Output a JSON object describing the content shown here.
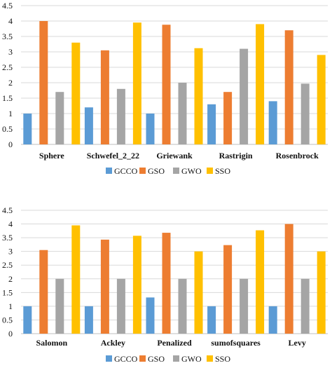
{
  "colors": {
    "GCCO": "#5B9BD5",
    "GSO": "#ED7D31",
    "GWO": "#A5A5A5",
    "SSO": "#FFC000",
    "grid": "#d9d9d9",
    "axis": "#bfbfbf"
  },
  "chart_data": [
    {
      "type": "bar",
      "categories": [
        "Sphere",
        "Schwefel_2_22",
        "Griewank",
        "Rastrigin",
        "Rosenbrock"
      ],
      "series": [
        {
          "name": "GCCO",
          "values": [
            1.0,
            1.2,
            1.0,
            1.3,
            1.4
          ]
        },
        {
          "name": "GSO",
          "values": [
            4.0,
            3.05,
            3.88,
            1.7,
            3.7
          ]
        },
        {
          "name": "GWO",
          "values": [
            1.7,
            1.8,
            2.0,
            3.1,
            1.97
          ]
        },
        {
          "name": "SSO",
          "values": [
            3.3,
            3.95,
            3.12,
            3.9,
            2.9
          ]
        }
      ],
      "ylim": [
        0,
        4.5
      ],
      "yticks": [
        "0",
        "0.5",
        "1",
        "1.5",
        "2",
        "2.5",
        "3",
        "3.5",
        "4",
        "4.5"
      ],
      "grid": true,
      "legend": "bottom"
    },
    {
      "type": "bar",
      "categories": [
        "Salomon",
        "Ackley",
        "Penalized",
        "sumofsquares",
        "Levy"
      ],
      "series": [
        {
          "name": "GCCO",
          "values": [
            1.0,
            1.0,
            1.32,
            1.0,
            1.0
          ]
        },
        {
          "name": "GSO",
          "values": [
            3.05,
            3.43,
            3.68,
            3.23,
            4.0
          ]
        },
        {
          "name": "GWO",
          "values": [
            2.0,
            2.0,
            2.0,
            2.0,
            2.0
          ]
        },
        {
          "name": "SSO",
          "values": [
            3.95,
            3.57,
            3.0,
            3.77,
            3.0
          ]
        }
      ],
      "ylim": [
        0,
        4.5
      ],
      "yticks": [
        "0",
        "0.5",
        "1",
        "1.5",
        "2",
        "2.5",
        "3",
        "3.5",
        "4",
        "4.5"
      ],
      "grid": true,
      "legend": "bottom"
    }
  ]
}
